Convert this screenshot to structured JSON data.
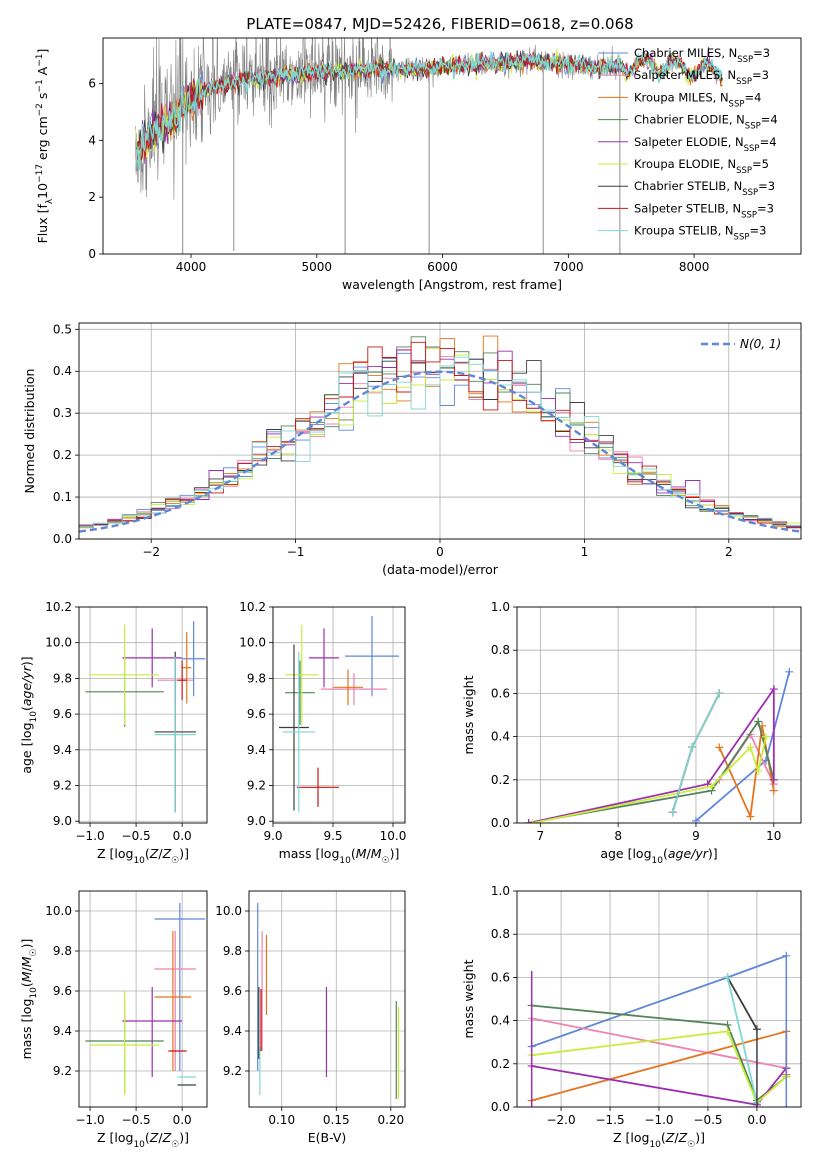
{
  "figure_title": "PLATE=0847, MJD=52426, FIBERID=0618, z=0.068",
  "colors": {
    "Chabrier MILES": "#5f87d7",
    "Salpeter MILES": "#ee82b0",
    "Kroupa MILES": "#e6741c",
    "Chabrier ELODIE": "#52845a",
    "Salpeter ELODIE": "#9c2fb0",
    "Kroupa ELODIE": "#c8ee3a",
    "Chabrier STELIB": "#3d3d3d",
    "Salpeter STELIB": "#cc1414",
    "Kroupa STELIB": "#7fd8d3",
    "data": "#808080",
    "gaussian": "#5f87d7"
  },
  "chart_data": [
    {
      "type": "line",
      "xlabel": "wavelength [Angstrom, rest frame]",
      "ylabel": "Flux [f_λ 10^-17 erg cm^-2 s^-1 A^-1]",
      "xlim": [
        3300,
        8850
      ],
      "ylim": [
        0,
        7.6
      ],
      "xticks": [
        4000,
        5000,
        6000,
        7000,
        8000
      ],
      "yticks": [
        0,
        2,
        4,
        6
      ],
      "grid": false,
      "legend_position": "top-right",
      "series": [
        {
          "name": "Chabrier MILES",
          "nssp": "3"
        },
        {
          "name": "Salpeter MILES",
          "nssp": "3"
        },
        {
          "name": "Kroupa MILES",
          "nssp": "4"
        },
        {
          "name": "Chabrier ELODIE",
          "nssp": "4"
        },
        {
          "name": "Salpeter ELODIE",
          "nssp": "4"
        },
        {
          "name": "Kroupa ELODIE",
          "nssp": "5"
        },
        {
          "name": "Chabrier STELIB",
          "nssp": "3"
        },
        {
          "name": "Salpeter STELIB",
          "nssp": "3"
        },
        {
          "name": "Kroupa STELIB",
          "nssp": "3"
        }
      ],
      "continuum": {
        "x": [
          3560,
          3700,
          3850,
          3950,
          4050,
          4200,
          4400,
          4600,
          4800,
          5000,
          5200,
          5500,
          5800,
          6100,
          6400,
          6700,
          7000,
          7200,
          7400,
          7600,
          7800,
          8000,
          8200
        ],
        "y": [
          3.6,
          4.3,
          4.7,
          5.2,
          5.6,
          5.9,
          6.1,
          6.2,
          6.3,
          6.4,
          6.4,
          6.5,
          6.5,
          6.6,
          6.7,
          6.8,
          6.7,
          6.6,
          6.6,
          6.7,
          6.6,
          6.5,
          6.4
        ]
      },
      "absorption_features": [
        {
          "x": 3934,
          "y": 0.0
        },
        {
          "x": 4340,
          "y": 0.1
        },
        {
          "x": 5225,
          "y": 0.0
        },
        {
          "x": 5893,
          "y": 0.0
        },
        {
          "x": 6800,
          "y": 0.0
        },
        {
          "x": 7410,
          "y": 0.0
        }
      ]
    },
    {
      "type": "step",
      "xlabel": "(data-model)/error",
      "ylabel": "Normed distribution",
      "xlim": [
        -2.5,
        2.5
      ],
      "ylim": [
        0,
        0.515
      ],
      "xticks": [
        -2,
        -1,
        0,
        1,
        2
      ],
      "yticks": [
        0.0,
        0.1,
        0.2,
        0.3,
        0.4,
        0.5
      ],
      "grid": true,
      "legend_position": "top-right",
      "legend": "N(0, 1)",
      "bin_edges_start": -2.5,
      "bin_width": 0.1
    },
    {
      "type": "scatter",
      "xlabel": "Z [log10(Z/Z☉)]",
      "ylabel": "age [log10(age/yr)]",
      "xlim": [
        -1.12,
        0.27
      ],
      "ylim": [
        8.99,
        10.2
      ],
      "xticks": [
        -1.0,
        -0.5,
        0.0
      ],
      "yticks": [
        9.0,
        9.2,
        9.4,
        9.6,
        9.8,
        10.0,
        10.2
      ],
      "grid": true,
      "points": [
        {
          "model": "Chabrier MILES",
          "x": [
            -0.3,
            0.25
          ],
          "y": [
            9.69,
            10.11
          ]
        },
        {
          "model": "Salpeter MILES",
          "x": [
            -0.27,
            0.1
          ],
          "y": [
            9.68,
            10.05
          ]
        },
        {
          "model": "Kroupa MILES",
          "x": [
            -0.05,
            0.1
          ],
          "y": [
            9.66,
            10.05
          ]
        },
        {
          "model": "Chabrier ELODIE",
          "x": [
            -1.05,
            -0.2
          ],
          "y": [
            9.54,
            9.8
          ]
        },
        {
          "model": "Salpeter ELODIE",
          "x": [
            -0.65,
            -0.05
          ],
          "y": [
            9.75,
            10.05
          ]
        },
        {
          "model": "Kroupa ELODIE",
          "x": [
            -1.0,
            -0.25
          ],
          "y": [
            9.54,
            9.88
          ]
        },
        {
          "model": "Chabrier STELIB",
          "x": [
            -0.2,
            -0.1
          ],
          "y": [
            9.06,
            9.95
          ]
        },
        {
          "model": "Salpeter STELIB",
          "x": [
            -0.05,
            0.0
          ],
          "y": [
            9.68,
            10.0
          ]
        },
        {
          "model": "Kroupa STELIB",
          "x": [
            -0.3,
            0.15
          ],
          "y": [
            9.05,
            9.95
          ]
        }
      ]
    },
    {
      "type": "scatter",
      "xlabel": "mass [log10(M/M☉)]",
      "ylabel": "",
      "xlim": [
        9.0,
        10.1
      ],
      "ylim": [
        8.99,
        10.2
      ],
      "xticks": [
        9.0,
        9.5,
        10.0
      ],
      "yticks": [
        9.0,
        9.2,
        9.4,
        9.6,
        9.8,
        10.0,
        10.2
      ],
      "grid": true
    },
    {
      "type": "line",
      "xlabel": "age [log10(age/yr)]",
      "ylabel": "mass weight",
      "xlim": [
        6.7,
        10.35
      ],
      "ylim": [
        0,
        1.0
      ],
      "xticks": [
        7,
        8,
        9,
        10
      ],
      "yticks": [
        0.0,
        0.2,
        0.4,
        0.6,
        0.8,
        1.0
      ],
      "grid": true,
      "series": [
        {
          "name": "Chabrier MILES",
          "x": [
            9.0,
            9.9,
            10.2
          ],
          "y": [
            0.01,
            0.29,
            0.7
          ]
        },
        {
          "name": "Salpeter MILES",
          "x": [
            9.3,
            9.7,
            10.0
          ],
          "y": [
            0.2,
            0.41,
            0.18
          ]
        },
        {
          "name": "Kroupa MILES",
          "x": [
            9.3,
            9.7,
            9.85,
            10.0
          ],
          "y": [
            0.35,
            0.03,
            0.45,
            0.15
          ]
        },
        {
          "name": "Chabrier ELODIE",
          "x": [
            6.85,
            9.2,
            9.8,
            10.0
          ],
          "y": [
            0.0,
            0.15,
            0.47,
            0.2
          ]
        },
        {
          "name": "Salpeter ELODIE",
          "x": [
            6.85,
            9.15,
            10.0,
            10.0
          ],
          "y": [
            0.0,
            0.18,
            0.62,
            0.2
          ]
        },
        {
          "name": "Kroupa ELODIE",
          "x": [
            6.9,
            9.2,
            9.7,
            9.8,
            9.9
          ],
          "y": [
            0.0,
            0.17,
            0.35,
            0.24,
            0.4
          ]
        },
        {
          "name": "Chabrier STELIB",
          "x": [
            8.7,
            8.95,
            9.3
          ],
          "y": [
            0.05,
            0.35,
            0.6
          ]
        },
        {
          "name": "Salpeter STELIB",
          "x": [
            8.7,
            8.95,
            9.3
          ],
          "y": [
            0.05,
            0.35,
            0.6
          ]
        },
        {
          "name": "Kroupa STELIB",
          "x": [
            8.7,
            8.95,
            9.3
          ],
          "y": [
            0.05,
            0.35,
            0.6
          ]
        }
      ]
    },
    {
      "type": "scatter",
      "xlabel": "Z [log10(Z/Z☉)]",
      "ylabel": "mass [log10(M/M☉)]",
      "xlim": [
        -1.12,
        0.27
      ],
      "ylim": [
        9.02,
        10.1
      ],
      "xticks": [
        -1.0,
        -0.5,
        0.0
      ],
      "yticks": [
        9.2,
        9.4,
        9.6,
        9.8,
        10.0
      ],
      "grid": true
    },
    {
      "type": "scatter",
      "xlabel": "E(B-V)",
      "ylabel": "",
      "xlim": [
        0.07,
        0.213
      ],
      "ylim": [
        9.02,
        10.1
      ],
      "xticks": [
        0.1,
        0.15,
        0.2
      ],
      "yticks": [
        9.2,
        9.4,
        9.6,
        9.8,
        10.0
      ],
      "grid": true
    },
    {
      "type": "line",
      "xlabel": "Z [log10(Z/Z☉)]",
      "ylabel": "mass weight",
      "xlim": [
        -2.45,
        0.45
      ],
      "ylim": [
        0,
        1.0
      ],
      "xticks": [
        -2.0,
        -1.5,
        -1.0,
        -0.5,
        0.0
      ],
      "yticks": [
        0.0,
        0.2,
        0.4,
        0.6,
        0.8,
        1.0
      ],
      "grid": true,
      "series": [
        {
          "name": "Chabrier MILES",
          "x": [
            -2.3,
            -0.3,
            0.3
          ],
          "y": [
            0.28,
            0.6,
            0.7
          ]
        },
        {
          "name": "Salpeter MILES",
          "x": [
            -2.3,
            0.3
          ],
          "y": [
            0.41,
            0.18
          ]
        },
        {
          "name": "Kroupa MILES",
          "x": [
            -2.3,
            0.3,
            0.3
          ],
          "y": [
            0.03,
            0.35,
            0.15
          ]
        },
        {
          "name": "Chabrier ELODIE",
          "x": [
            -2.3,
            -0.3,
            0.0,
            0.3
          ],
          "y": [
            0.47,
            0.38,
            0.03,
            0.14
          ]
        },
        {
          "name": "Salpeter ELODIE",
          "x": [
            -2.3,
            0.0,
            0.3
          ],
          "y": [
            0.19,
            0.01,
            0.18
          ]
        },
        {
          "name": "Kroupa ELODIE",
          "x": [
            -2.3,
            -0.3,
            0.0,
            0.3
          ],
          "y": [
            0.24,
            0.35,
            0.02,
            0.14
          ]
        },
        {
          "name": "Chabrier STELIB",
          "x": [
            -0.3,
            0.0
          ],
          "y": [
            0.6,
            0.36
          ]
        },
        {
          "name": "Kroupa STELIB",
          "x": [
            -0.3,
            0.0
          ],
          "y": [
            0.6,
            0.02
          ]
        }
      ]
    }
  ]
}
